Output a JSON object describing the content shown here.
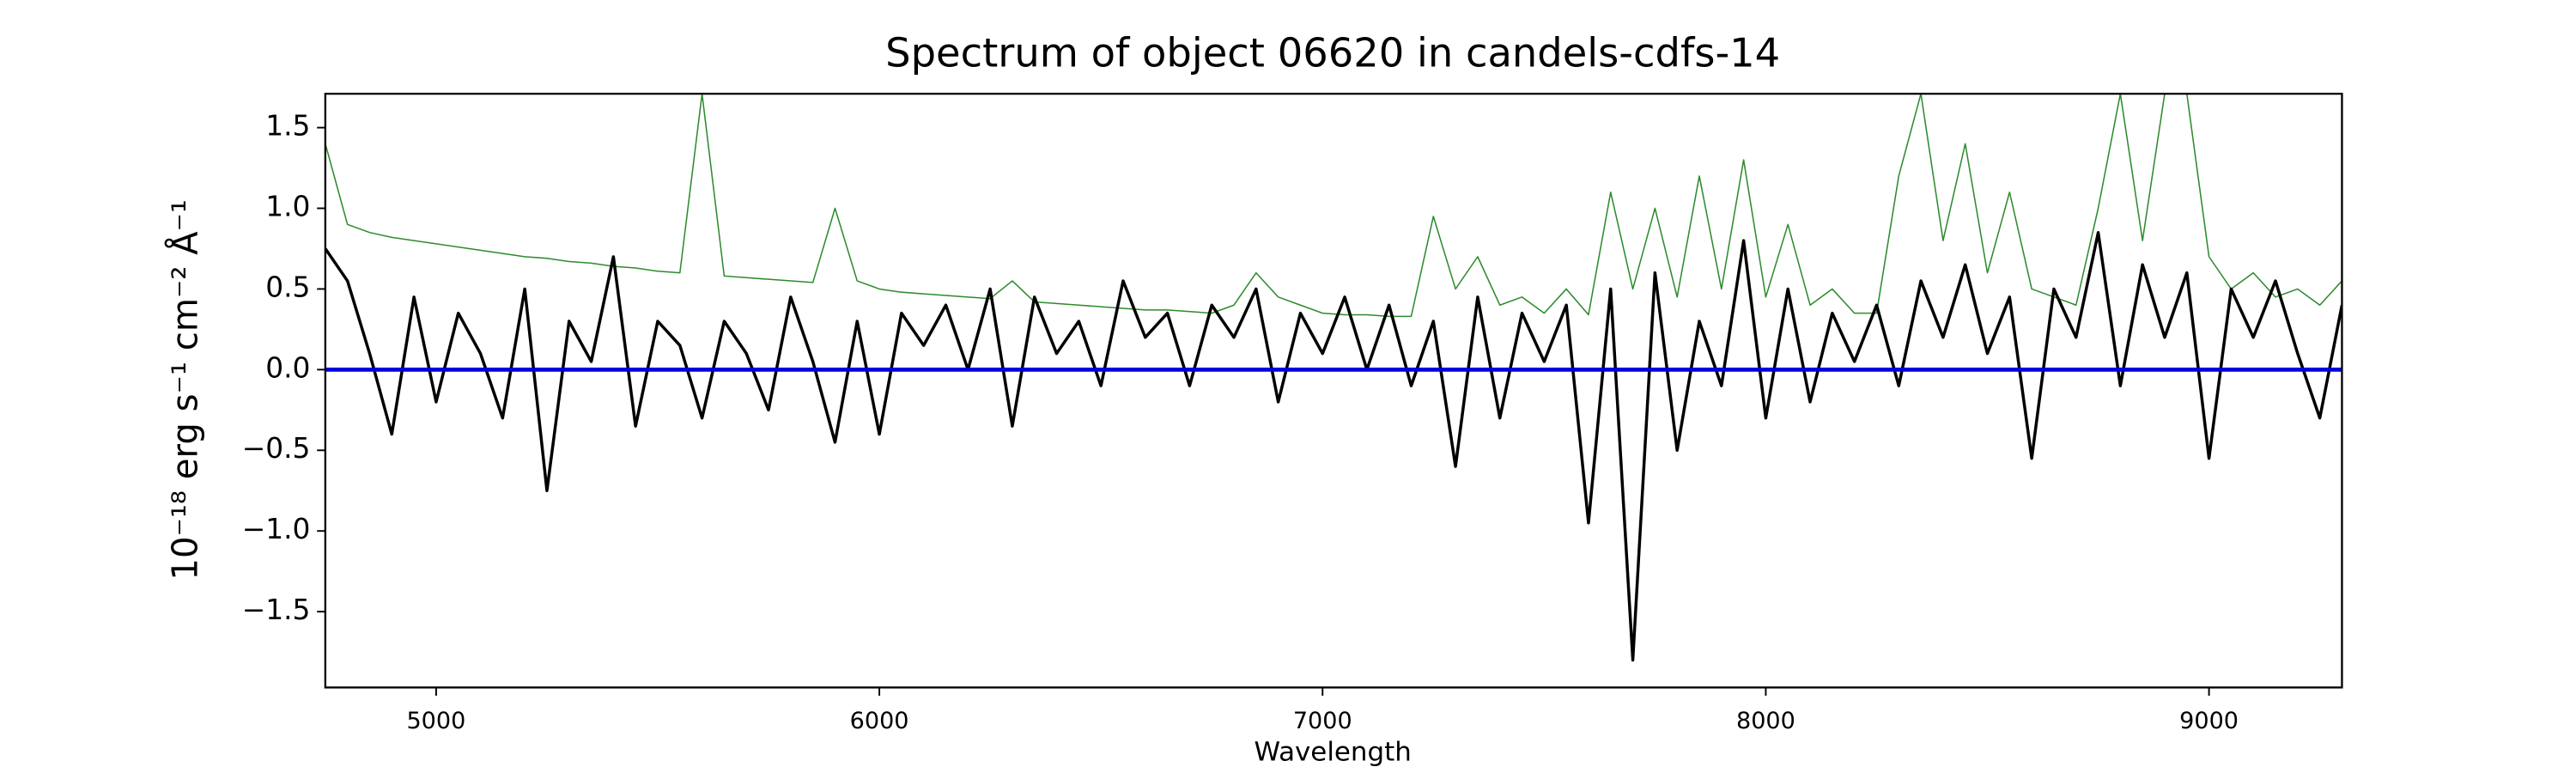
{
  "chart_data": {
    "type": "line",
    "title": "Spectrum of object 06620 in candels-cdfs-14",
    "x_label": "Wavelength",
    "y_label": "10⁻¹⁸ erg s⁻¹ cm⁻² Å⁻¹",
    "xlim": [
      4750,
      9300
    ],
    "ylim": [
      -1.97,
      1.71
    ],
    "xticks": [
      5000,
      6000,
      7000,
      8000,
      9000
    ],
    "yticks": [
      {
        "value": -1.5,
        "label": "−1.5"
      },
      {
        "value": -1.0,
        "label": "−1.0"
      },
      {
        "value": -0.5,
        "label": "−0.5"
      },
      {
        "value": 0,
        "label": "0.0"
      },
      {
        "value": 0.5,
        "label": "0.5"
      },
      {
        "value": 1.0,
        "label": "1.0"
      },
      {
        "value": 1.5,
        "label": "1.5"
      }
    ],
    "x": [
      4750,
      4800,
      4850,
      4900,
      4950,
      5000,
      5050,
      5100,
      5150,
      5200,
      5250,
      5300,
      5350,
      5400,
      5450,
      5500,
      5550,
      5600,
      5650,
      5700,
      5750,
      5800,
      5850,
      5900,
      5950,
      6000,
      6050,
      6100,
      6150,
      6200,
      6250,
      6300,
      6350,
      6400,
      6450,
      6500,
      6550,
      6600,
      6650,
      6700,
      6750,
      6800,
      6850,
      6900,
      6950,
      7000,
      7050,
      7100,
      7150,
      7200,
      7250,
      7300,
      7350,
      7400,
      7450,
      7500,
      7550,
      7600,
      7650,
      7700,
      7750,
      7800,
      7850,
      7900,
      7950,
      8000,
      8050,
      8100,
      8150,
      8200,
      8250,
      8300,
      8350,
      8400,
      8450,
      8500,
      8550,
      8600,
      8650,
      8700,
      8750,
      8800,
      8850,
      8900,
      8950,
      9000,
      9050,
      9100,
      9150,
      9200,
      9250,
      9300
    ],
    "series": [
      {
        "color": "#2e8b2e",
        "width": 0.8,
        "values": [
          1.4,
          0.9,
          0.85,
          0.82,
          0.8,
          0.78,
          0.76,
          0.74,
          0.72,
          0.7,
          0.69,
          0.67,
          0.66,
          0.64,
          0.63,
          0.61,
          0.6,
          1.71,
          0.58,
          0.57,
          0.56,
          0.55,
          0.54,
          1.0,
          0.55,
          0.5,
          0.48,
          0.47,
          0.46,
          0.45,
          0.44,
          0.55,
          0.42,
          0.41,
          0.4,
          0.39,
          0.38,
          0.37,
          0.37,
          0.36,
          0.35,
          0.4,
          0.6,
          0.45,
          0.4,
          0.35,
          0.34,
          0.34,
          0.33,
          0.33,
          0.95,
          0.5,
          0.7,
          0.4,
          0.45,
          0.35,
          0.5,
          0.34,
          1.1,
          0.5,
          1.0,
          0.45,
          1.2,
          0.5,
          1.3,
          0.45,
          0.9,
          0.4,
          0.5,
          0.35,
          0.35,
          1.2,
          1.71,
          0.8,
          1.4,
          0.6,
          1.1,
          0.5,
          0.45,
          0.4,
          1.0,
          1.71,
          0.8,
          1.71,
          1.71,
          0.7,
          0.5,
          0.6,
          0.45,
          0.5,
          0.4,
          0.55
        ]
      },
      {
        "color": "#000000",
        "width": 1.8,
        "values": [
          0.75,
          0.55,
          0.1,
          -0.4,
          0.45,
          -0.2,
          0.35,
          0.1,
          -0.3,
          0.5,
          -0.75,
          0.3,
          0.05,
          0.7,
          -0.35,
          0.3,
          0.15,
          -0.3,
          0.3,
          0.1,
          -0.25,
          0.45,
          0.05,
          -0.45,
          0.3,
          -0.4,
          0.35,
          0.15,
          0.4,
          0.0,
          0.5,
          -0.35,
          0.45,
          0.1,
          0.3,
          -0.1,
          0.55,
          0.2,
          0.35,
          -0.1,
          0.4,
          0.2,
          0.5,
          -0.2,
          0.35,
          0.1,
          0.45,
          0.0,
          0.4,
          -0.1,
          0.3,
          -0.6,
          0.45,
          -0.3,
          0.35,
          0.05,
          0.4,
          -0.95,
          0.5,
          -1.8,
          0.6,
          -0.5,
          0.3,
          -0.1,
          0.8,
          -0.3,
          0.5,
          -0.2,
          0.35,
          0.05,
          0.4,
          -0.1,
          0.55,
          0.2,
          0.65,
          0.1,
          0.45,
          -0.55,
          0.5,
          0.2,
          0.85,
          -0.1,
          0.65,
          0.2,
          0.6,
          -0.55,
          0.5,
          0.2,
          0.55,
          0.1,
          -0.3,
          0.4
        ]
      }
    ],
    "zero_line": {
      "value": 0,
      "color": "#0000dd"
    }
  }
}
